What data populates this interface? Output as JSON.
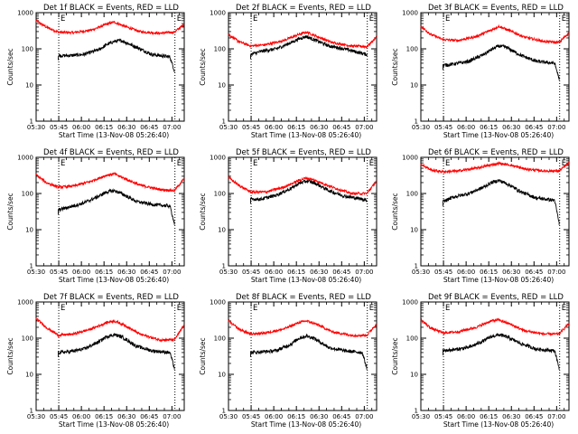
{
  "figure": {
    "title_suffix": " BLACK = Events, RED = LLD",
    "ylabel": "Counts/sec",
    "xlabel": "Start Time (13-Nov-08 05:26:40)",
    "xticks": [
      "05:30",
      "05:45",
      "06:00",
      "06:15",
      "06:30",
      "06:45",
      "07:00"
    ],
    "yticks": [
      "1",
      "10",
      "100",
      "1000"
    ],
    "marker": "E",
    "colors": {
      "events": "#000000",
      "lld": "#ff0000",
      "axes": "#000000"
    }
  },
  "chart_data": [
    {
      "type": "line",
      "detector": "Det 1f",
      "title": "Det 1f BLACK = Events, RED = LLD",
      "xlim_min": [
        3.33,
        101.5
      ],
      "ylim": [
        1,
        1000
      ],
      "yscale": "log",
      "xlabel": "Start Time (13-Nov-08 05:26:40)",
      "ylabel": "Counts/sec",
      "vlines_min": [
        18.33,
        95.33
      ],
      "series": [
        {
          "name": "Events",
          "color": "#000000",
          "x_min": [
            18,
            25,
            35,
            45,
            50,
            55,
            60,
            70,
            80,
            92,
            95
          ],
          "values": [
            65,
            65,
            70,
            95,
            130,
            160,
            170,
            110,
            70,
            60,
            25
          ]
        },
        {
          "name": "LLD",
          "color": "#ff0000",
          "x_min": [
            3.33,
            10,
            18,
            28,
            40,
            50,
            55,
            62,
            72,
            85,
            95,
            101.5
          ],
          "values": [
            600,
            400,
            290,
            280,
            330,
            480,
            550,
            420,
            300,
            270,
            290,
            480
          ]
        }
      ]
    },
    {
      "type": "line",
      "detector": "Det 2f",
      "title": "Det 2f BLACK = Events, RED = LLD",
      "xlim_min": [
        3.33,
        101.5
      ],
      "ylim": [
        1,
        1000
      ],
      "yscale": "log",
      "xlabel": "Start Time (13-Nov-08 05:26:40)",
      "ylabel": "Counts/sec",
      "vlines_min": [
        18.33,
        95.33
      ],
      "series": [
        {
          "name": "Events",
          "color": "#000000",
          "x_min": [
            18,
            25,
            35,
            45,
            50,
            55,
            60,
            70,
            80,
            92,
            95
          ],
          "values": [
            70,
            85,
            100,
            150,
            190,
            220,
            180,
            120,
            100,
            75,
            70
          ]
        },
        {
          "name": "LLD",
          "color": "#ff0000",
          "x_min": [
            3.33,
            10,
            18,
            28,
            40,
            50,
            55,
            62,
            72,
            85,
            95,
            101.5
          ],
          "values": [
            250,
            160,
            120,
            130,
            170,
            250,
            290,
            220,
            150,
            120,
            115,
            210
          ]
        }
      ]
    },
    {
      "type": "line",
      "detector": "Det 3f",
      "title": "Det 3f BLACK = Events, RED = LLD",
      "xlim_min": [
        3.33,
        101.5
      ],
      "ylim": [
        1,
        1000
      ],
      "yscale": "log",
      "xlabel": "Start Time (13-Nov-08 05:26:40)",
      "ylabel": "Counts/sec",
      "vlines_min": [
        18.33,
        95.33
      ],
      "series": [
        {
          "name": "Events",
          "color": "#000000",
          "x_min": [
            18,
            25,
            35,
            45,
            50,
            55,
            60,
            70,
            80,
            92,
            95
          ],
          "values": [
            35,
            38,
            45,
            70,
            95,
            120,
            110,
            65,
            45,
            40,
            15
          ]
        },
        {
          "name": "LLD",
          "color": "#ff0000",
          "x_min": [
            3.33,
            10,
            18,
            28,
            40,
            50,
            55,
            62,
            72,
            85,
            95,
            101.5
          ],
          "values": [
            420,
            250,
            180,
            170,
            220,
            330,
            420,
            320,
            210,
            160,
            150,
            280
          ]
        }
      ]
    },
    {
      "type": "line",
      "detector": "Det 4f",
      "title": "Det 4f BLACK = Events, RED = LLD",
      "xlim_min": [
        3.33,
        101.5
      ],
      "ylim": [
        1,
        1000
      ],
      "yscale": "log",
      "xlabel": "Start Time (13-Nov-08 05:26:40)",
      "ylabel": "Counts/sec",
      "vlines_min": [
        18.33,
        95.33
      ],
      "series": [
        {
          "name": "Events",
          "color": "#000000",
          "x_min": [
            18,
            25,
            35,
            45,
            50,
            55,
            60,
            70,
            80,
            92,
            95
          ],
          "values": [
            35,
            42,
            55,
            85,
            110,
            120,
            100,
            60,
            50,
            45,
            15
          ]
        },
        {
          "name": "LLD",
          "color": "#ff0000",
          "x_min": [
            3.33,
            10,
            18,
            28,
            40,
            50,
            55,
            62,
            72,
            85,
            95,
            101.5
          ],
          "values": [
            330,
            200,
            150,
            160,
            220,
            320,
            350,
            260,
            170,
            130,
            120,
            260
          ]
        }
      ]
    },
    {
      "type": "line",
      "detector": "Det 5f",
      "title": "Det 5f BLACK = Events, RED = LLD",
      "xlim_min": [
        3.33,
        101.5
      ],
      "ylim": [
        1,
        1000
      ],
      "yscale": "log",
      "xlabel": "Start Time (13-Nov-08 05:26:40)",
      "ylabel": "Counts/sec",
      "vlines_min": [
        18.33,
        95.33
      ],
      "series": [
        {
          "name": "Events",
          "color": "#000000",
          "x_min": [
            18,
            25,
            35,
            45,
            50,
            55,
            60,
            70,
            80,
            92,
            95
          ],
          "values": [
            70,
            70,
            90,
            140,
            190,
            220,
            200,
            120,
            85,
            70,
            65
          ]
        },
        {
          "name": "LLD",
          "color": "#ff0000",
          "x_min": [
            3.33,
            10,
            18,
            28,
            40,
            50,
            55,
            62,
            72,
            85,
            95,
            101.5
          ],
          "values": [
            280,
            170,
            110,
            110,
            150,
            230,
            270,
            220,
            150,
            100,
            100,
            220
          ]
        }
      ]
    },
    {
      "type": "line",
      "detector": "Det 6f",
      "title": "Det 6f BLACK = Events, RED = LLD",
      "xlim_min": [
        3.33,
        101.5
      ],
      "ylim": [
        1,
        1000
      ],
      "yscale": "log",
      "xlabel": "Start Time (13-Nov-08 05:26:40)",
      "ylabel": "Counts/sec",
      "vlines_min": [
        18.33,
        95.33
      ],
      "series": [
        {
          "name": "Events",
          "color": "#000000",
          "x_min": [
            18,
            25,
            35,
            45,
            50,
            55,
            60,
            70,
            80,
            92,
            95
          ],
          "values": [
            60,
            80,
            100,
            150,
            200,
            230,
            190,
            110,
            75,
            65,
            15
          ]
        },
        {
          "name": "LLD",
          "color": "#ff0000",
          "x_min": [
            3.33,
            10,
            18,
            28,
            40,
            50,
            55,
            62,
            72,
            85,
            95,
            101.5
          ],
          "values": [
            650,
            450,
            400,
            420,
            500,
            620,
            680,
            620,
            480,
            420,
            420,
            700
          ]
        }
      ]
    },
    {
      "type": "line",
      "detector": "Det 7f",
      "title": "Det 7f BLACK = Events, RED = LLD",
      "xlim_min": [
        3.33,
        101.5
      ],
      "ylim": [
        1,
        1000
      ],
      "yscale": "log",
      "xlabel": "Start Time (13-Nov-08 05:26:40)",
      "ylabel": "Counts/sec",
      "vlines_min": [
        18.33,
        95.33
      ],
      "series": [
        {
          "name": "Events",
          "color": "#000000",
          "x_min": [
            18,
            25,
            35,
            45,
            50,
            55,
            60,
            70,
            80,
            92,
            95
          ],
          "values": [
            40,
            42,
            50,
            80,
            110,
            125,
            110,
            60,
            45,
            40,
            15
          ]
        },
        {
          "name": "LLD",
          "color": "#ff0000",
          "x_min": [
            3.33,
            10,
            18,
            28,
            40,
            50,
            55,
            62,
            72,
            85,
            95,
            101.5
          ],
          "values": [
            350,
            200,
            120,
            130,
            180,
            270,
            300,
            230,
            130,
            90,
            90,
            230
          ]
        }
      ]
    },
    {
      "type": "line",
      "detector": "Det 8f",
      "title": "Det 8f BLACK = Events, RED = LLD",
      "xlim_min": [
        3.33,
        101.5
      ],
      "ylim": [
        1,
        1000
      ],
      "yscale": "log",
      "xlabel": "Start Time (13-Nov-08 05:26:40)",
      "ylabel": "Counts/sec",
      "vlines_min": [
        18.33,
        95.33
      ],
      "series": [
        {
          "name": "Events",
          "color": "#000000",
          "x_min": [
            18,
            25,
            35,
            45,
            50,
            55,
            60,
            70,
            80,
            92,
            95
          ],
          "values": [
            40,
            42,
            45,
            70,
            100,
            115,
            100,
            55,
            45,
            40,
            15
          ]
        },
        {
          "name": "LLD",
          "color": "#ff0000",
          "x_min": [
            3.33,
            10,
            18,
            28,
            40,
            50,
            55,
            62,
            72,
            85,
            95,
            101.5
          ],
          "values": [
            300,
            180,
            130,
            140,
            180,
            270,
            300,
            240,
            150,
            120,
            120,
            250
          ]
        }
      ]
    },
    {
      "type": "line",
      "detector": "Det 9f",
      "title": "Det 9f BLACK = Events, RED = LLD",
      "xlim_min": [
        3.33,
        101.5
      ],
      "ylim": [
        1,
        1000
      ],
      "yscale": "log",
      "xlabel": "Start Time (13-Nov-08 05:26:40)",
      "ylabel": "Counts/sec",
      "vlines_min": [
        18.33,
        95.33
      ],
      "series": [
        {
          "name": "Events",
          "color": "#000000",
          "x_min": [
            18,
            25,
            35,
            45,
            50,
            55,
            60,
            70,
            80,
            92,
            95
          ],
          "values": [
            45,
            48,
            55,
            85,
            110,
            125,
            110,
            70,
            50,
            45,
            15
          ]
        },
        {
          "name": "LLD",
          "color": "#ff0000",
          "x_min": [
            3.33,
            10,
            18,
            28,
            40,
            50,
            55,
            62,
            72,
            85,
            95,
            101.5
          ],
          "values": [
            320,
            190,
            140,
            150,
            200,
            300,
            320,
            250,
            160,
            130,
            130,
            260
          ]
        }
      ]
    }
  ]
}
